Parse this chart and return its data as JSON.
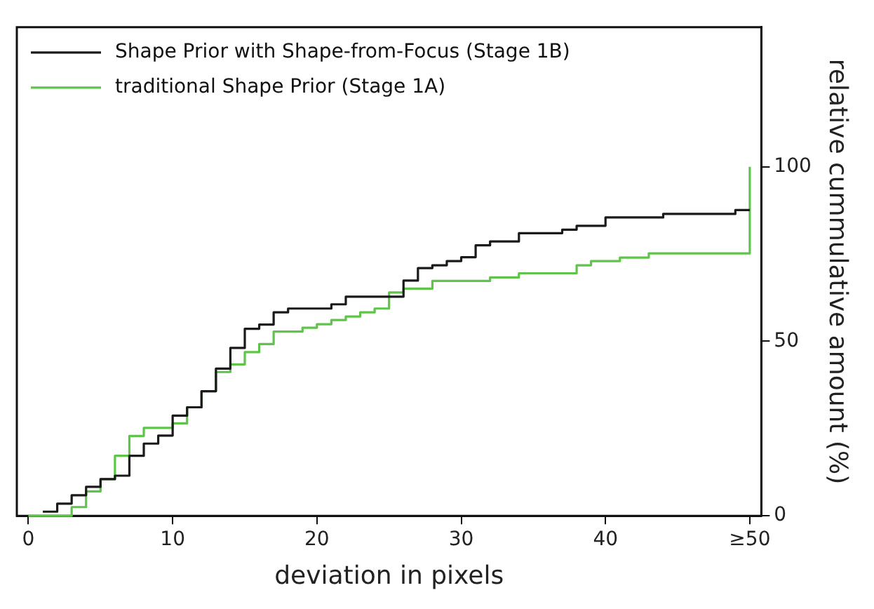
{
  "chart_data": {
    "type": "step",
    "xlabel": "deviation in pixels",
    "ylabel": "relative cummulative amount (%)",
    "series": [
      {
        "name": "Shape Prior with Shape-from-Focus (Stage 1B)",
        "color": "#1a1a1a",
        "x": [
          1,
          2,
          3,
          4,
          5,
          6,
          7,
          8,
          9,
          10,
          11,
          12,
          13,
          14,
          15,
          16,
          17,
          18,
          21,
          22,
          26,
          27,
          28,
          29,
          30,
          31,
          32,
          34,
          37,
          38,
          40,
          44,
          49,
          50
        ],
        "values": [
          1.2,
          3.5,
          5.9,
          8.3,
          10.5,
          11.5,
          17.2,
          20.7,
          23,
          28.7,
          31.1,
          35.7,
          42.2,
          48.1,
          53.6,
          54.8,
          58.3,
          59.4,
          60.6,
          62.8,
          67.4,
          71,
          71.8,
          73,
          74.1,
          77.5,
          78.6,
          81,
          82,
          83.1,
          85.5,
          86.5,
          87.6,
          87.6
        ]
      },
      {
        "name": "traditional Shape Prior (Stage 1A)",
        "color": "#5ec44a",
        "x": [
          0,
          3,
          4,
          5,
          6,
          7,
          8,
          10,
          11,
          12,
          13,
          14,
          15,
          16,
          17,
          19,
          20,
          21,
          22,
          23,
          24,
          25,
          26,
          28,
          32,
          34,
          38,
          39,
          41,
          43,
          50
        ],
        "values": [
          0,
          2.5,
          7,
          10.5,
          17.2,
          22.9,
          25.2,
          26.5,
          31.1,
          35.7,
          41.2,
          43.4,
          46.9,
          49.2,
          52.8,
          53.9,
          54.9,
          56.1,
          57.1,
          58.3,
          59.4,
          64,
          65.1,
          67.3,
          68.3,
          69.5,
          71.8,
          73,
          74,
          75.2,
          100
        ]
      }
    ],
    "xlim": [
      -0.8,
      50.8
    ],
    "xticks": [
      0,
      10,
      20,
      30,
      40,
      {
        "value": 50,
        "label": "≥50"
      }
    ],
    "ylim": [
      0,
      140
    ],
    "yticks": [
      0,
      50,
      100
    ],
    "legend": "top left",
    "grid": false,
    "line_style": "solid",
    "marker": "none"
  }
}
